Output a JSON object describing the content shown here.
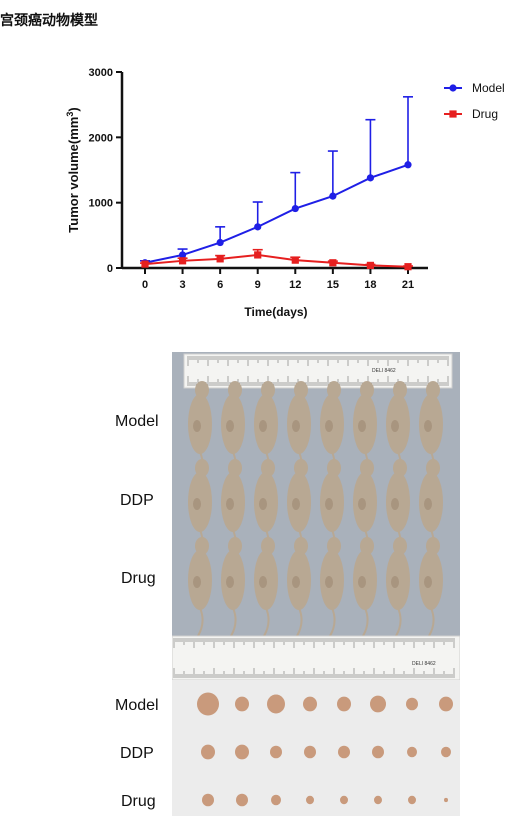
{
  "heading": "宫颈癌动物模型",
  "chart_data": {
    "type": "line",
    "title": "",
    "xlabel": "Time(days)",
    "ylabel": "Tumor volume(mm³)",
    "y_label_main": "Tumor volume(mm",
    "y_label_sup": "3",
    "y_label_end": ")",
    "x": [
      0,
      3,
      6,
      9,
      12,
      15,
      18,
      21
    ],
    "x_ticks": [
      "0",
      "3",
      "6",
      "9",
      "12",
      "15",
      "18",
      "21"
    ],
    "y_ticks": [
      "0",
      "1000",
      "2000",
      "3000"
    ],
    "y_tick_values": [
      0,
      1000,
      2000,
      3000
    ],
    "xlim": [
      0,
      21
    ],
    "ylim": [
      0,
      3000
    ],
    "grid": false,
    "legend_position": "top-right",
    "series": [
      {
        "name": "Model",
        "color": "#1f1fe6",
        "marker": "circle",
        "values": [
          80,
          200,
          390,
          630,
          910,
          1100,
          1380,
          1580
        ],
        "errors": [
          30,
          90,
          240,
          380,
          550,
          690,
          890,
          1040
        ]
      },
      {
        "name": "Drug",
        "color": "#e61f1f",
        "marker": "square",
        "values": [
          60,
          110,
          140,
          200,
          120,
          80,
          40,
          20
        ],
        "errors": [
          15,
          40,
          50,
          80,
          45,
          25,
          15,
          10
        ]
      }
    ]
  },
  "photos": {
    "mice_rows": [
      "Model",
      "DDP",
      "Drug"
    ],
    "tumor_rows": [
      "Model",
      "DDP",
      "Drug"
    ],
    "ruler_top_text": "DELI 8462",
    "ruler_bottom_text": "DELI 8462"
  },
  "colors": {
    "axis": "#111111",
    "photo_background": "#a9b1bb",
    "tumor_background": "#ececec"
  }
}
